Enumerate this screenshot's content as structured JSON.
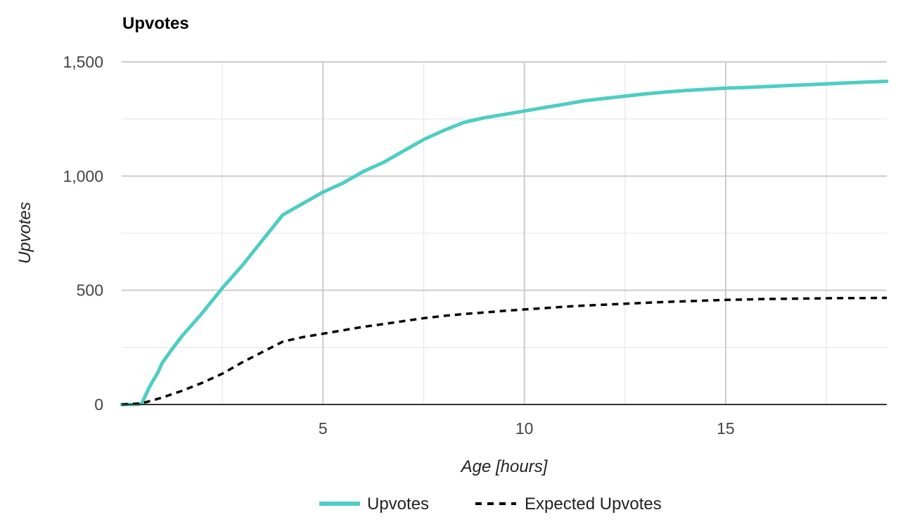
{
  "chart_data": {
    "type": "line",
    "title": "Upvotes",
    "xlabel": "Age [hours]",
    "ylabel": "Upvotes",
    "xlim": [
      0,
      19
    ],
    "ylim": [
      0,
      1500
    ],
    "x_ticks": [
      5,
      10,
      15
    ],
    "y_ticks": [
      0,
      500,
      1000,
      1500
    ],
    "x_tick_labels": [
      "5",
      "10",
      "15"
    ],
    "y_tick_labels": [
      "0",
      "500",
      "1,000",
      "1,500"
    ],
    "x_minor_ticks": [
      2.5,
      7.5,
      12.5,
      17.5
    ],
    "y_minor_ticks": [
      250,
      750,
      1250
    ],
    "grid": true,
    "legend_position": "bottom-center",
    "colors": {
      "upvotes": "#4ecdc4",
      "expected": "#000000"
    },
    "series": [
      {
        "name": "Upvotes",
        "style": "solid",
        "x": [
          0,
          0.4,
          0.5,
          0.7,
          0.9,
          1.0,
          1.2,
          1.5,
          1.8,
          2.0,
          2.5,
          3.0,
          3.5,
          4.0,
          4.5,
          5.0,
          5.5,
          6.0,
          6.5,
          7.0,
          7.5,
          8.0,
          8.5,
          9.0,
          9.5,
          10.0,
          10.5,
          11.0,
          11.5,
          12.0,
          12.5,
          13.0,
          13.5,
          14.0,
          14.5,
          15.0,
          15.5,
          16.0,
          16.5,
          17.0,
          17.5,
          18.0,
          18.5,
          19.0
        ],
        "y": [
          0,
          0,
          5,
          80,
          140,
          180,
          230,
          300,
          360,
          400,
          510,
          610,
          720,
          830,
          880,
          930,
          970,
          1020,
          1060,
          1110,
          1160,
          1200,
          1235,
          1255,
          1270,
          1285,
          1300,
          1315,
          1330,
          1340,
          1350,
          1360,
          1368,
          1375,
          1380,
          1385,
          1388,
          1392,
          1396,
          1400,
          1404,
          1408,
          1412,
          1415
        ]
      },
      {
        "name": "Expected Upvotes",
        "style": "dashed",
        "x": [
          0,
          0.5,
          1.0,
          1.5,
          2.0,
          2.5,
          3.0,
          3.5,
          4.0,
          4.5,
          5.0,
          5.5,
          6.0,
          6.5,
          7.0,
          7.5,
          8.0,
          8.5,
          9.0,
          9.5,
          10.0,
          10.5,
          11.0,
          11.5,
          12.0,
          12.5,
          13.0,
          13.5,
          14.0,
          14.5,
          15.0,
          15.5,
          16.0,
          16.5,
          17.0,
          17.5,
          18.0,
          18.5,
          19.0
        ],
        "y": [
          0,
          5,
          30,
          60,
          95,
          135,
          185,
          230,
          275,
          295,
          310,
          325,
          340,
          352,
          365,
          378,
          388,
          396,
          403,
          410,
          416,
          422,
          428,
          433,
          437,
          441,
          445,
          449,
          452,
          455,
          458,
          460,
          462,
          463,
          464,
          465,
          466,
          466,
          467
        ]
      }
    ]
  }
}
